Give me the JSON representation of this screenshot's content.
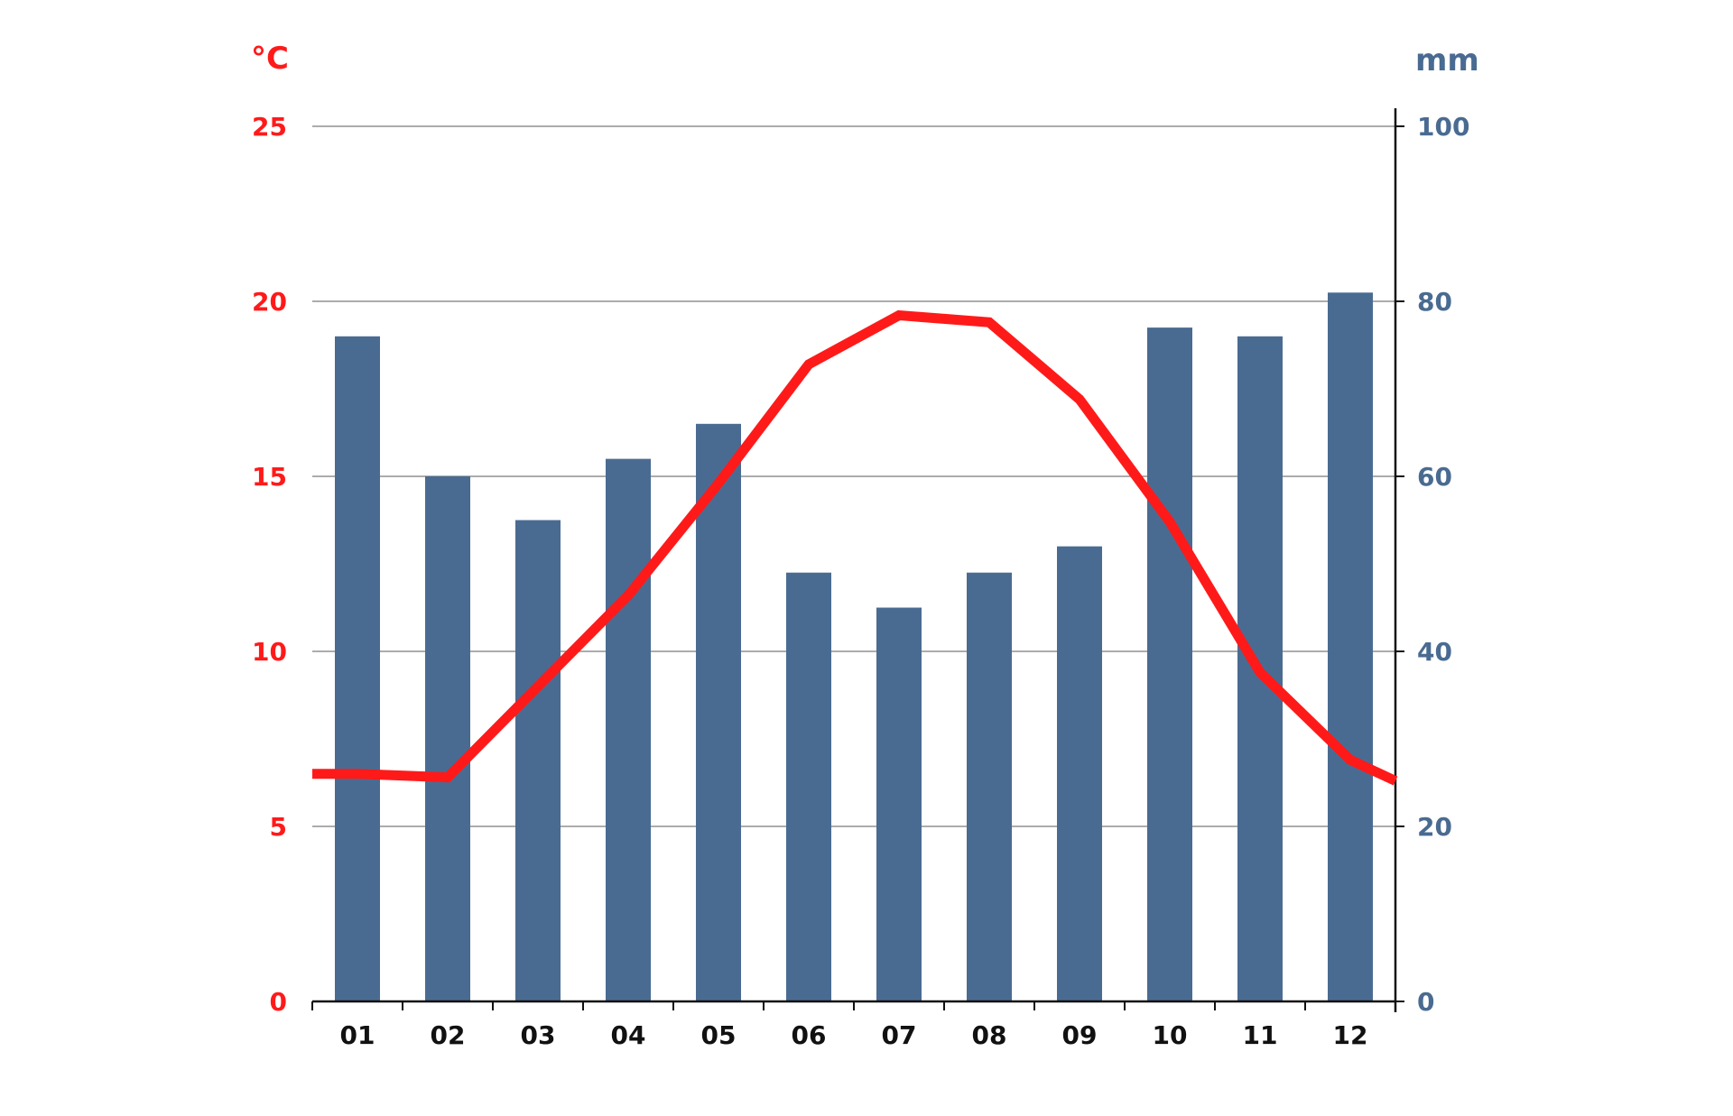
{
  "chart_data": {
    "type": "bar",
    "title": "",
    "grid": true,
    "categories": [
      "01",
      "02",
      "03",
      "04",
      "05",
      "06",
      "07",
      "08",
      "09",
      "10",
      "11",
      "12"
    ],
    "left_axis": {
      "unit": "°C",
      "ylim": [
        0,
        25
      ],
      "ticks": [
        "0",
        "5",
        "10",
        "15",
        "20",
        "25"
      ],
      "color": "#ff1a1a"
    },
    "right_axis": {
      "unit": "mm",
      "ylim": [
        0,
        100
      ],
      "ticks": [
        "0",
        "20",
        "40",
        "60",
        "80",
        "100"
      ],
      "color": "#4a6b91"
    },
    "series": [
      {
        "type": "bar",
        "axis": "right",
        "color": "#4a6b91",
        "values": [
          76,
          60,
          55,
          62,
          66,
          49,
          45,
          49,
          52,
          77,
          76,
          81
        ]
      },
      {
        "type": "line",
        "axis": "left",
        "color": "#ff1a1a",
        "values": [
          6.5,
          6.4,
          9.0,
          11.6,
          14.8,
          18.2,
          19.6,
          19.4,
          17.2,
          13.7,
          9.4,
          6.9
        ],
        "edge_start": 6.5,
        "edge_end": 6.3
      }
    ]
  }
}
